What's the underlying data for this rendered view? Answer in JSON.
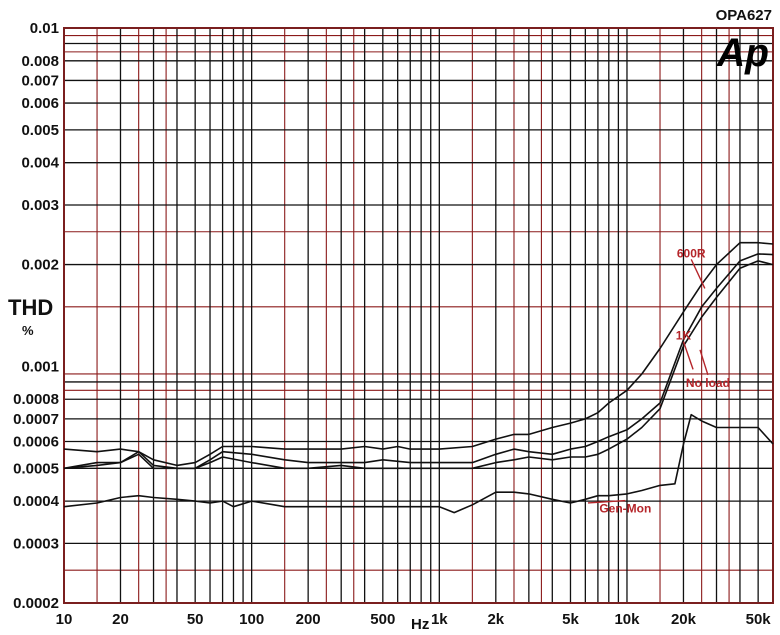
{
  "chart_data": {
    "type": "line",
    "title": "OPA627",
    "logo": "Ap",
    "ylabel": "THD",
    "yunit": "%",
    "xunit": "Hz",
    "xscale": "log",
    "yscale": "log",
    "xlim": [
      10,
      60000
    ],
    "ylim": [
      0.0002,
      0.01
    ],
    "grid": true,
    "colors": {
      "frame": "#7a1f1f",
      "grid_dark": "#111111",
      "grid_red": "#8b1a1a",
      "curve": "#111111",
      "annotation": "#b5252a"
    },
    "y_tick_labels": [
      {
        "value": 0.01,
        "label": "0.01"
      },
      {
        "value": 0.008,
        "label": "0.008"
      },
      {
        "value": 0.007,
        "label": "0.007"
      },
      {
        "value": 0.006,
        "label": "0.006"
      },
      {
        "value": 0.005,
        "label": "0.005"
      },
      {
        "value": 0.004,
        "label": "0.004"
      },
      {
        "value": 0.003,
        "label": "0.003"
      },
      {
        "value": 0.002,
        "label": "0.002"
      },
      {
        "value": 0.001,
        "label": "0.001"
      },
      {
        "value": 0.0008,
        "label": "0.0008"
      },
      {
        "value": 0.0007,
        "label": "0.0007"
      },
      {
        "value": 0.0006,
        "label": "0.0006"
      },
      {
        "value": 0.0005,
        "label": "0.0005"
      },
      {
        "value": 0.0004,
        "label": "0.0004"
      },
      {
        "value": 0.0003,
        "label": "0.0003"
      },
      {
        "value": 0.0002,
        "label": "0.0002"
      }
    ],
    "x_tick_labels": [
      {
        "value": 10,
        "label": "10"
      },
      {
        "value": 20,
        "label": "20"
      },
      {
        "value": 50,
        "label": "50"
      },
      {
        "value": 100,
        "label": "100"
      },
      {
        "value": 200,
        "label": "200"
      },
      {
        "value": 500,
        "label": "500"
      },
      {
        "value": 1000,
        "label": "1k"
      },
      {
        "value": 2000,
        "label": "2k"
      },
      {
        "value": 5000,
        "label": "5k"
      },
      {
        "value": 10000,
        "label": "10k"
      },
      {
        "value": 20000,
        "label": "20k"
      },
      {
        "value": 50000,
        "label": "50k"
      }
    ],
    "x_dark_grid": [
      10,
      20,
      30,
      40,
      50,
      60,
      70,
      80,
      90,
      100,
      200,
      300,
      400,
      500,
      600,
      700,
      800,
      900,
      1000,
      2000,
      3000,
      4000,
      5000,
      6000,
      7000,
      8000,
      9000,
      10000,
      20000,
      30000,
      40000,
      50000
    ],
    "x_red_grid": [
      15,
      25,
      35,
      150,
      250,
      350,
      1500,
      2500,
      3500,
      15000,
      25000,
      35000
    ],
    "y_dark_grid": [
      0.009,
      0.008,
      0.007,
      0.006,
      0.005,
      0.004,
      0.003,
      0.002,
      0.0009,
      0.0008,
      0.0007,
      0.0006,
      0.0005,
      0.0004,
      0.0003
    ],
    "y_red_grid": [
      0.0095,
      0.0085,
      0.0025,
      0.0015,
      0.00095,
      0.00085,
      0.00025
    ],
    "series": [
      {
        "name": "600R",
        "x": [
          10,
          15,
          20,
          25,
          30,
          40,
          50,
          60,
          70,
          100,
          150,
          200,
          300,
          400,
          500,
          600,
          700,
          1000,
          1500,
          2000,
          2500,
          3000,
          4000,
          5000,
          6000,
          7000,
          8000,
          10000,
          12000,
          15000,
          20000,
          25000,
          30000,
          40000,
          50000,
          60000
        ],
        "y": [
          0.00057,
          0.00056,
          0.00057,
          0.00056,
          0.00053,
          0.00051,
          0.00052,
          0.00055,
          0.00058,
          0.00058,
          0.00057,
          0.00057,
          0.00057,
          0.00058,
          0.00057,
          0.00058,
          0.00057,
          0.00057,
          0.00058,
          0.00061,
          0.00063,
          0.00063,
          0.00066,
          0.00068,
          0.0007,
          0.00073,
          0.00078,
          0.00085,
          0.00095,
          0.00113,
          0.00145,
          0.00175,
          0.002,
          0.00232,
          0.00232,
          0.0023
        ]
      },
      {
        "name": "1K",
        "x": [
          10,
          15,
          20,
          25,
          30,
          40,
          50,
          60,
          70,
          100,
          150,
          200,
          300,
          400,
          500,
          700,
          1000,
          1500,
          2000,
          2500,
          3000,
          4000,
          5000,
          6000,
          7000,
          8000,
          10000,
          12000,
          15000,
          20000,
          25000,
          30000,
          40000,
          50000,
          60000
        ],
        "y": [
          0.0005,
          0.00051,
          0.00052,
          0.00056,
          0.00051,
          0.0005,
          0.0005,
          0.00053,
          0.00056,
          0.00055,
          0.00053,
          0.00052,
          0.00052,
          0.00052,
          0.00053,
          0.00052,
          0.00052,
          0.00052,
          0.00055,
          0.00057,
          0.00056,
          0.00055,
          0.00057,
          0.00058,
          0.0006,
          0.00062,
          0.00065,
          0.0007,
          0.00078,
          0.0012,
          0.0015,
          0.0017,
          0.00205,
          0.00215,
          0.00214
        ]
      },
      {
        "name": "No load",
        "x": [
          10,
          15,
          20,
          25,
          30,
          40,
          50,
          60,
          70,
          100,
          150,
          200,
          300,
          400,
          500,
          700,
          1000,
          1500,
          2000,
          2500,
          3000,
          4000,
          5000,
          6000,
          7000,
          8000,
          10000,
          12000,
          15000,
          20000,
          25000,
          30000,
          40000,
          50000,
          60000
        ],
        "y": [
          0.0005,
          0.00052,
          0.00052,
          0.00055,
          0.0005,
          0.0005,
          0.0005,
          0.00052,
          0.00054,
          0.00052,
          0.0005,
          0.0005,
          0.00051,
          0.0005,
          0.0005,
          0.0005,
          0.0005,
          0.0005,
          0.00052,
          0.00053,
          0.00054,
          0.00053,
          0.00054,
          0.00054,
          0.00055,
          0.00057,
          0.00061,
          0.00066,
          0.00075,
          0.00115,
          0.0014,
          0.0016,
          0.00195,
          0.00205,
          0.002
        ]
      },
      {
        "name": "Gen-Mon",
        "x": [
          10,
          15,
          20,
          25,
          30,
          40,
          50,
          60,
          70,
          80,
          100,
          150,
          200,
          300,
          400,
          500,
          700,
          1000,
          1200,
          1500,
          2000,
          2500,
          3000,
          4000,
          5000,
          6000,
          7000,
          8000,
          10000,
          12000,
          15000,
          18000,
          20000,
          22000,
          25000,
          30000,
          40000,
          50000,
          60000
        ],
        "y": [
          0.000385,
          0.000395,
          0.00041,
          0.000415,
          0.00041,
          0.000405,
          0.0004,
          0.000395,
          0.0004,
          0.000385,
          0.0004,
          0.000385,
          0.000385,
          0.000385,
          0.000385,
          0.000385,
          0.000385,
          0.000385,
          0.00037,
          0.00039,
          0.000425,
          0.000425,
          0.00042,
          0.000405,
          0.000395,
          0.000405,
          0.000415,
          0.000415,
          0.00042,
          0.00043,
          0.000445,
          0.00045,
          0.00059,
          0.00072,
          0.00069,
          0.00066,
          0.00066,
          0.00066,
          0.00059
        ]
      }
    ],
    "annotations": [
      {
        "text": "600R",
        "x": 22000,
        "y": 0.0021,
        "target_x": 26000,
        "target_y": 0.0017
      },
      {
        "text": "1K",
        "x": 20000,
        "y": 0.0012,
        "target_x": 22500,
        "target_y": 0.00098
      },
      {
        "text": "No load",
        "x": 27000,
        "y": 0.00087,
        "target_x": 24500,
        "target_y": 0.00112
      },
      {
        "text": "Gen-Mon",
        "x": 9800,
        "y": 0.00037,
        "target_x": 6200,
        "target_y": 0.000395
      }
    ]
  }
}
